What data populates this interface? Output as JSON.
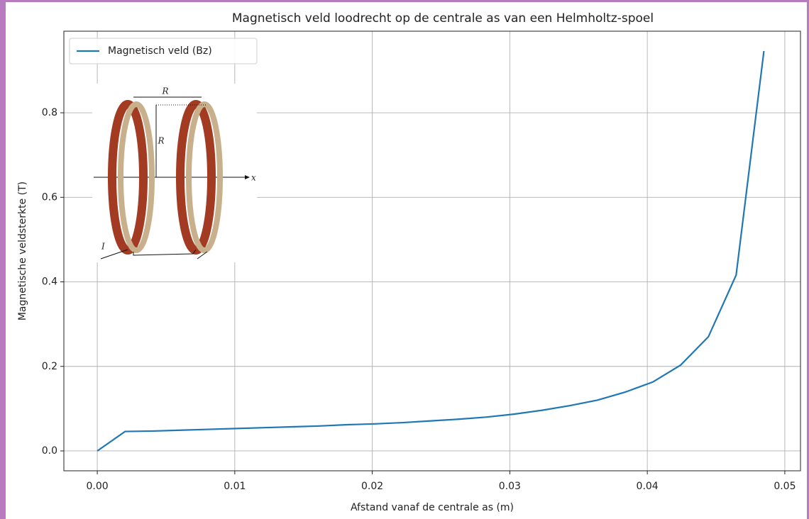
{
  "chart_data": {
    "type": "line",
    "title": "Magnetisch veld loodrecht op de centrale as van een Helmholtz-spoel",
    "xlabel": "Afstand vanaf de centrale as (m)",
    "ylabel": "Magnetische veldsterkte (T)",
    "x": [
      0,
      0.00202,
      0.00404,
      0.00606,
      0.00808,
      0.0101,
      0.01212,
      0.01414,
      0.01616,
      0.01818,
      0.0202,
      0.02222,
      0.02424,
      0.02626,
      0.02828,
      0.0303,
      0.03232,
      0.03434,
      0.03636,
      0.03838,
      0.0404,
      0.04242,
      0.04444,
      0.04646,
      0.04848
    ],
    "series": [
      {
        "name": "Magnetisch veld (Bz)",
        "color": "#1f77b4",
        "values": [
          0,
          0.046,
          0.047,
          0.049,
          0.051,
          0.053,
          0.055,
          0.057,
          0.059,
          0.062,
          0.064,
          0.067,
          0.071,
          0.075,
          0.08,
          0.087,
          0.096,
          0.107,
          0.12,
          0.139,
          0.163,
          0.203,
          0.27,
          0.416,
          0.946
        ]
      }
    ],
    "xlim": [
      -0.00243,
      0.05114
    ],
    "ylim": [
      -0.047,
      0.993
    ],
    "xticks": [
      {
        "value": 0,
        "label": "0.00"
      },
      0.01,
      0.02,
      0.03,
      0.04,
      0.05
    ],
    "yticks": [
      {
        "value": 0,
        "label": "0.0"
      },
      0.2,
      0.4,
      0.6,
      0.8
    ],
    "grid": true,
    "legend": "upper left",
    "inset_labels": [
      "R",
      "R",
      "x",
      "I"
    ]
  }
}
